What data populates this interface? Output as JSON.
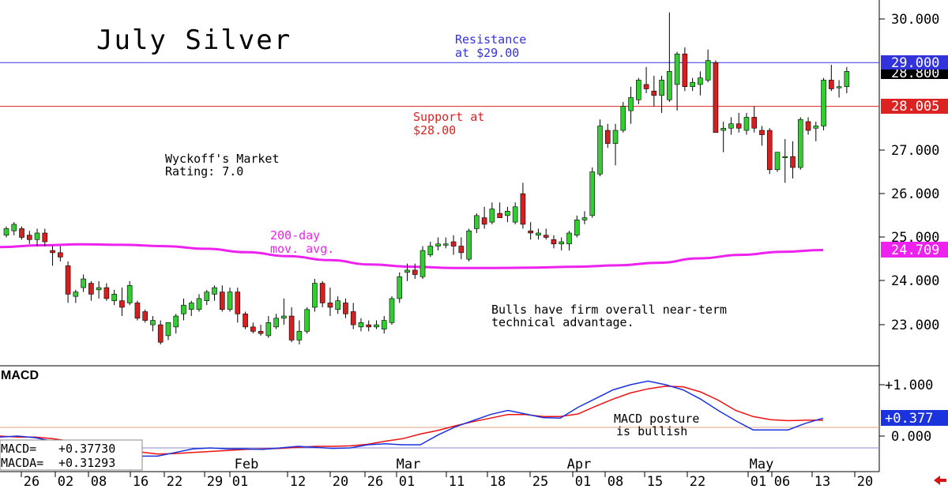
{
  "colors": {
    "up_candle": "#33cc33",
    "down_candle": "#d42020",
    "ma200": "#ee22ee",
    "resistance": "#3333dd",
    "support": "#dd2222",
    "macd_line": "#1a33dd",
    "macda_line": "#ee1111",
    "text": "#000000"
  },
  "chart_data": [
    {
      "type": "candlestick",
      "title": "July Silver",
      "y_scale": {
        "min": 22.0,
        "max": 30.4
      },
      "y_ticks": [
        "30.000",
        "29.000",
        "28.800",
        "28.005",
        "27.000",
        "26.000",
        "25.000",
        "24.709",
        "24.000",
        "23.000"
      ],
      "x_ticks": [
        "26",
        "02",
        "08",
        "16",
        "22",
        "29",
        "01",
        "12",
        "20",
        "26",
        "01",
        "11",
        "18",
        "25",
        "01",
        "08",
        "15",
        "22",
        "01",
        "06",
        "13",
        "20"
      ],
      "months": [
        "Feb",
        "Mar",
        "Apr",
        "May"
      ],
      "levels": {
        "resistance": {
          "value": 29.0,
          "label": "29.000",
          "note": [
            "Resistance",
            "at $29.00"
          ]
        },
        "support": {
          "value": 28.0,
          "label": "28.005",
          "note": [
            "Support at",
            "$28.00"
          ]
        },
        "last": {
          "value": 28.8,
          "label": "28.800"
        },
        "ma200": {
          "value": 24.709,
          "label": "24.709",
          "note": [
            "200-day",
            "mov. avg."
          ]
        }
      },
      "annotations": {
        "rating": [
          "Wyckoff's Market",
          "Rating: 7.0"
        ],
        "comment": [
          "Bulls have firm overall near-term",
          "technical advantage."
        ]
      },
      "candles": [
        [
          25.05,
          25.25,
          25.0,
          25.2
        ],
        [
          25.15,
          25.35,
          25.05,
          25.3
        ],
        [
          25.2,
          25.25,
          24.95,
          25.0
        ],
        [
          25.05,
          25.15,
          24.85,
          24.95
        ],
        [
          24.95,
          25.2,
          24.8,
          25.1
        ],
        [
          25.1,
          25.2,
          24.8,
          24.9
        ],
        [
          24.7,
          24.8,
          24.35,
          24.65
        ],
        [
          24.65,
          24.8,
          24.45,
          24.55
        ],
        [
          24.35,
          24.45,
          23.5,
          23.7
        ],
        [
          23.65,
          23.8,
          23.5,
          23.75
        ],
        [
          23.85,
          24.15,
          23.75,
          24.05
        ],
        [
          23.95,
          24.0,
          23.55,
          23.7
        ],
        [
          23.8,
          24.0,
          23.6,
          23.85
        ],
        [
          23.85,
          23.95,
          23.55,
          23.6
        ],
        [
          23.55,
          23.8,
          23.45,
          23.7
        ],
        [
          23.55,
          23.85,
          23.2,
          23.4
        ],
        [
          23.5,
          24.0,
          23.45,
          23.9
        ],
        [
          23.5,
          23.55,
          23.1,
          23.15
        ],
        [
          23.3,
          23.35,
          23.05,
          23.1
        ],
        [
          23.0,
          23.2,
          22.85,
          23.1
        ],
        [
          23.0,
          23.1,
          22.55,
          22.6
        ],
        [
          22.75,
          23.05,
          22.65,
          23.05
        ],
        [
          22.95,
          23.25,
          22.8,
          23.2
        ],
        [
          23.25,
          23.6,
          23.1,
          23.45
        ],
        [
          23.35,
          23.55,
          23.2,
          23.5
        ],
        [
          23.35,
          23.7,
          23.3,
          23.6
        ],
        [
          23.55,
          23.8,
          23.45,
          23.75
        ],
        [
          23.7,
          23.9,
          23.55,
          23.85
        ],
        [
          23.75,
          23.9,
          23.3,
          23.35
        ],
        [
          23.35,
          23.85,
          23.3,
          23.75
        ],
        [
          23.75,
          23.85,
          23.05,
          23.25
        ],
        [
          23.25,
          23.3,
          22.9,
          22.95
        ],
        [
          22.95,
          23.05,
          22.8,
          22.85
        ],
        [
          22.85,
          23.0,
          22.75,
          22.8
        ],
        [
          22.75,
          23.2,
          22.7,
          23.05
        ],
        [
          22.95,
          23.25,
          22.9,
          23.15
        ],
        [
          23.15,
          23.6,
          23.0,
          23.2
        ],
        [
          23.2,
          23.4,
          22.6,
          22.65
        ],
        [
          22.65,
          23.1,
          22.55,
          22.85
        ],
        [
          22.85,
          23.4,
          22.8,
          23.35
        ],
        [
          23.4,
          24.05,
          23.3,
          23.95
        ],
        [
          23.95,
          24.0,
          23.4,
          23.5
        ],
        [
          23.5,
          23.85,
          23.2,
          23.4
        ],
        [
          23.35,
          23.65,
          23.25,
          23.55
        ],
        [
          23.5,
          23.6,
          23.15,
          23.25
        ],
        [
          23.3,
          23.5,
          22.9,
          23.0
        ],
        [
          22.95,
          23.15,
          22.85,
          23.05
        ],
        [
          23.0,
          23.1,
          22.85,
          22.95
        ],
        [
          22.95,
          23.1,
          22.9,
          23.0
        ],
        [
          22.9,
          23.2,
          22.8,
          23.1
        ],
        [
          23.05,
          23.65,
          23.0,
          23.6
        ],
        [
          23.6,
          24.2,
          23.5,
          24.1
        ],
        [
          24.2,
          24.4,
          24.0,
          24.25
        ],
        [
          24.25,
          24.4,
          24.05,
          24.15
        ],
        [
          24.1,
          24.8,
          24.05,
          24.7
        ],
        [
          24.6,
          24.9,
          24.55,
          24.8
        ],
        [
          24.8,
          25.0,
          24.7,
          24.85
        ],
        [
          24.85,
          25.0,
          24.75,
          24.85
        ],
        [
          24.9,
          25.05,
          24.6,
          24.8
        ],
        [
          24.8,
          25.0,
          24.5,
          24.65
        ],
        [
          24.5,
          25.2,
          24.45,
          25.15
        ],
        [
          25.2,
          25.55,
          25.1,
          25.5
        ],
        [
          25.45,
          25.7,
          25.2,
          25.3
        ],
        [
          25.35,
          25.8,
          25.3,
          25.65
        ],
        [
          25.55,
          25.8,
          25.45,
          25.45
        ],
        [
          25.5,
          25.7,
          25.35,
          25.6
        ],
        [
          25.35,
          25.8,
          25.3,
          25.7
        ],
        [
          26.0,
          26.25,
          25.2,
          25.3
        ],
        [
          25.15,
          25.35,
          24.95,
          25.1
        ],
        [
          25.05,
          25.2,
          24.95,
          25.1
        ],
        [
          25.05,
          25.2,
          24.95,
          25.0
        ],
        [
          24.95,
          25.05,
          24.75,
          24.85
        ],
        [
          24.85,
          25.0,
          24.7,
          24.9
        ],
        [
          24.85,
          25.15,
          24.7,
          25.1
        ],
        [
          25.05,
          25.5,
          25.0,
          25.4
        ],
        [
          25.4,
          25.6,
          25.3,
          25.45
        ],
        [
          25.5,
          26.6,
          25.45,
          26.5
        ],
        [
          26.45,
          27.7,
          26.4,
          27.55
        ],
        [
          27.45,
          27.6,
          27.05,
          27.15
        ],
        [
          27.15,
          27.6,
          26.65,
          27.45
        ],
        [
          27.45,
          28.1,
          27.4,
          28.0
        ],
        [
          27.9,
          28.45,
          27.6,
          28.2
        ],
        [
          28.15,
          28.65,
          28.05,
          28.6
        ],
        [
          28.5,
          28.9,
          28.3,
          28.4
        ],
        [
          28.35,
          28.7,
          28.0,
          28.25
        ],
        [
          28.25,
          28.7,
          27.85,
          28.6
        ],
        [
          28.15,
          30.15,
          28.1,
          28.8
        ],
        [
          28.5,
          29.25,
          27.9,
          29.2
        ],
        [
          29.2,
          29.35,
          28.35,
          28.45
        ],
        [
          28.45,
          28.65,
          28.35,
          28.55
        ],
        [
          28.5,
          28.8,
          28.25,
          28.65
        ],
        [
          28.6,
          29.3,
          28.55,
          29.05
        ],
        [
          29.0,
          29.05,
          27.45,
          27.4
        ],
        [
          27.45,
          27.65,
          26.95,
          27.5
        ],
        [
          27.5,
          27.75,
          27.35,
          27.6
        ],
        [
          27.6,
          27.85,
          27.4,
          27.5
        ],
        [
          27.45,
          27.85,
          27.35,
          27.75
        ],
        [
          27.75,
          28.0,
          27.4,
          27.5
        ],
        [
          27.45,
          27.55,
          27.1,
          27.35
        ],
        [
          27.45,
          27.5,
          26.45,
          26.55
        ],
        [
          26.55,
          26.95,
          26.5,
          26.95
        ],
        [
          26.85,
          27.25,
          26.25,
          26.85
        ],
        [
          26.85,
          27.2,
          26.35,
          26.6
        ],
        [
          26.6,
          27.75,
          26.55,
          27.7
        ],
        [
          27.65,
          27.75,
          27.35,
          27.45
        ],
        [
          27.5,
          27.65,
          27.2,
          27.55
        ],
        [
          27.55,
          28.65,
          27.45,
          28.6
        ],
        [
          28.6,
          28.95,
          28.35,
          28.4
        ],
        [
          28.45,
          28.6,
          28.2,
          28.45
        ],
        [
          28.45,
          28.9,
          28.3,
          28.8
        ]
      ],
      "ma200_values": [
        24.78,
        24.82,
        24.84,
        24.83,
        24.8,
        24.74,
        24.66,
        24.57,
        24.48,
        24.38,
        24.33,
        24.3,
        24.3,
        24.31,
        24.33,
        24.36,
        24.42,
        24.52,
        24.6,
        24.67,
        24.71
      ]
    },
    {
      "type": "line",
      "title": "MACD",
      "y_ticks": [
        "+1.000",
        "0.000"
      ],
      "current_label": "+0.377",
      "series": [
        {
          "name": "MACD",
          "value_label": "+0.37730",
          "values": [
            -0.02,
            -0.0,
            -0.03,
            -0.1,
            -0.16,
            -0.2,
            -0.23,
            -0.34,
            -0.39,
            -0.39,
            -0.32,
            -0.25,
            -0.23,
            -0.25,
            -0.25,
            -0.26,
            -0.23,
            -0.2,
            -0.22,
            -0.24,
            -0.23,
            -0.17,
            -0.15,
            -0.17,
            -0.17,
            0.02,
            0.18,
            0.3,
            0.42,
            0.5,
            0.43,
            0.36,
            0.35,
            0.56,
            0.73,
            0.9,
            1.0,
            1.07,
            1.0,
            0.9,
            0.72,
            0.5,
            0.3,
            0.12,
            0.12,
            0.12,
            0.25,
            0.35
          ]
        },
        {
          "name": "MACDA",
          "value_label": "+0.31293",
          "values": [
            0.0,
            -0.02,
            -0.02,
            -0.05,
            -0.1,
            -0.15,
            -0.23,
            -0.27,
            -0.31,
            -0.35,
            -0.34,
            -0.32,
            -0.3,
            -0.28,
            -0.26,
            -0.25,
            -0.24,
            -0.22,
            -0.2,
            -0.2,
            -0.19,
            -0.16,
            -0.1,
            -0.05,
            0.04,
            0.11,
            0.2,
            0.28,
            0.35,
            0.42,
            0.42,
            0.38,
            0.38,
            0.43,
            0.58,
            0.72,
            0.84,
            0.92,
            0.97,
            0.96,
            0.86,
            0.7,
            0.5,
            0.38,
            0.32,
            0.3,
            0.31,
            0.31
          ]
        }
      ],
      "note": [
        "MACD posture",
        "is bullish"
      ]
    }
  ]
}
